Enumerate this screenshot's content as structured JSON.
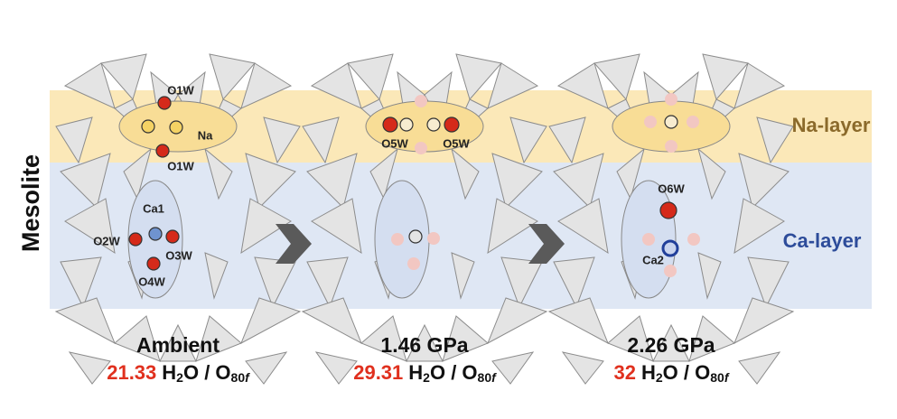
{
  "side_label": "Mesolite",
  "layers": {
    "na": "Na-layer",
    "ca": "Ca-layer"
  },
  "formula": {
    "h": "H",
    "h_sub": "2",
    "mid": "O / O",
    "o_sub": "80",
    "f": "f"
  },
  "panels": [
    {
      "condition": "Ambient",
      "water": "21.33",
      "atoms": [
        "O1W",
        "Na",
        "O1W",
        "Ca1",
        "O2W",
        "O3W",
        "O4W"
      ]
    },
    {
      "condition": "1.46 GPa",
      "water": "29.31",
      "atoms": [
        "O5W",
        "O5W"
      ]
    },
    {
      "condition": "2.26 GPa",
      "water": "32",
      "atoms": [
        "O6W",
        "Ca2"
      ]
    }
  ]
}
